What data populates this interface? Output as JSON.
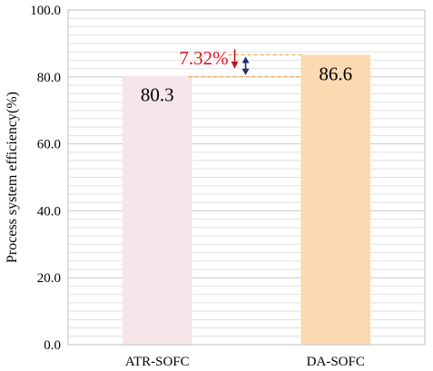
{
  "chart_data": {
    "type": "bar",
    "categories": [
      "ATR-SOFC",
      "DA-SOFC"
    ],
    "values": [
      80.3,
      86.6
    ],
    "value_labels": [
      "80.3",
      "86.6"
    ],
    "title": "",
    "xlabel": "",
    "ylabel": "Process system efficiency(%)",
    "ylim": [
      0,
      100
    ],
    "yticks": [
      "0.0",
      "20.0",
      "40.0",
      "60.0",
      "80.0",
      "100.0"
    ],
    "grid": true,
    "bar_colors": [
      "#f5e6ea",
      "#fbd9b1"
    ],
    "annotation": {
      "text": "7.32%",
      "color": "#e0161e",
      "arrow_down_color": "#c0161e",
      "arrow_double_color": "#1f2f6e",
      "dash_color": "#f0a040"
    }
  }
}
